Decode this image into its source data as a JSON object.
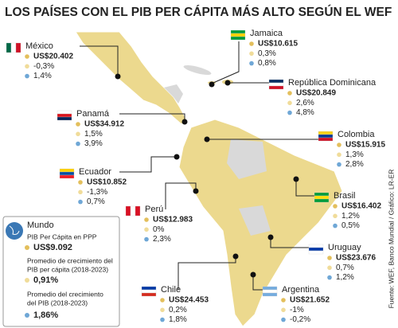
{
  "title": "LOS PAÍSES CON EL PIB PER CÁPITA MÁS ALTO SEGÚN EL WEF",
  "countries": [
    {
      "name": "México",
      "gdp": "US$20.402",
      "growth": "-0,3%",
      "avg": "1,4%"
    },
    {
      "name": "Jamaica",
      "gdp": "US$10.615",
      "growth": "0,3%",
      "avg": "0,8%"
    },
    {
      "name": "República Dominicana",
      "gdp": "US$20.849",
      "growth": "2,6%",
      "avg": "4,8%"
    },
    {
      "name": "Panamá",
      "gdp": "US$34.912",
      "growth": "1,5%",
      "avg": "3,9%"
    },
    {
      "name": "Colombia",
      "gdp": "US$15.915",
      "growth": "1,3%",
      "avg": "2,8%"
    },
    {
      "name": "Ecuador",
      "gdp": "US$10.852",
      "growth": "-1,3%",
      "avg": "0,7%"
    },
    {
      "name": "Brasil",
      "gdp": "US$16.402",
      "growth": "1,2%",
      "avg": "0,5%"
    },
    {
      "name": "Perú",
      "gdp": "US$12.983",
      "growth": "0%",
      "avg": "2,3%"
    },
    {
      "name": "Uruguay",
      "gdp": "US$23.676",
      "growth": "0,7%",
      "avg": "1,2%"
    },
    {
      "name": "Chile",
      "gdp": "US$24.453",
      "growth": "0,2%",
      "avg": "1,8%"
    },
    {
      "name": "Argentina",
      "gdp": "US$21.652",
      "growth": "-1%",
      "avg": "-0,2%"
    }
  ],
  "world": {
    "name": "Mundo",
    "gdp_label": "PIB Per Cápita en PPP",
    "gdp": "US$9.092",
    "growth_label": [
      "Promedio de crecimiento del",
      "PIB per cápita (2018-2023)"
    ],
    "growth": "0,91%",
    "avg_label": [
      "Promedio del crecimiento",
      "del PIB (2018-2023)"
    ],
    "avg": "1,86%"
  },
  "source": "Fuente: WEF, Banco Mundial / Gráfico: LR-ER"
}
